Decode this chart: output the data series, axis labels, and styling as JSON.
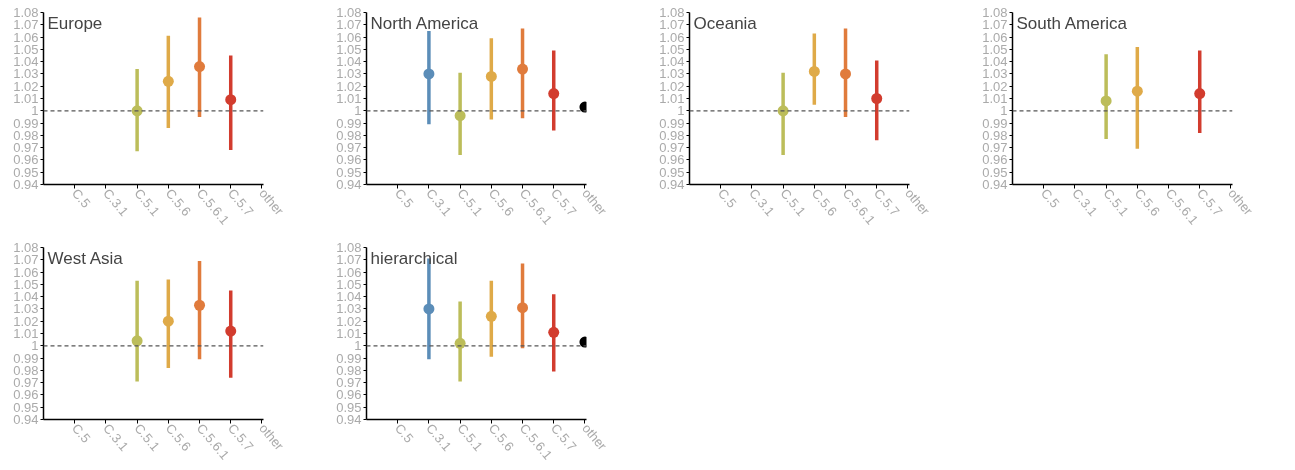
{
  "chart_data": [
    {
      "type": "scatter",
      "title": "Europe",
      "categories": [
        "C.5",
        "C.3.1",
        "C.5.1",
        "C.5.6",
        "C.5.6.1",
        "C.5.7",
        "other"
      ],
      "values": [
        null,
        null,
        1.0,
        1.024,
        1.036,
        1.009,
        null
      ],
      "errors": [
        null,
        null,
        [
          0.967,
          1.034
        ],
        [
          0.986,
          1.061
        ],
        [
          0.995,
          1.076
        ],
        [
          0.968,
          1.045
        ],
        null
      ],
      "colors": [
        "#5b8db8",
        "#5b8db8",
        "#bcbd5a",
        "#dfaa48",
        "#e07b3c",
        "#d23c2e",
        "#000000"
      ],
      "marker": "circle",
      "ylim": [
        0.94,
        1.08
      ],
      "yticks": [
        0.94,
        0.95,
        0.96,
        0.97,
        0.98,
        0.99,
        1,
        1.01,
        1.02,
        1.03,
        1.04,
        1.05,
        1.06,
        1.07,
        1.08
      ],
      "ref_lines": [
        {
          "axis": "y",
          "value": 1,
          "color": "#555555",
          "line_style": "dashed"
        }
      ],
      "grid": false
    },
    {
      "type": "scatter",
      "title": "North America",
      "categories": [
        "C.5",
        "C.3.1",
        "C.5.1",
        "C.5.6",
        "C.5.6.1",
        "C.5.7",
        "other"
      ],
      "values": [
        null,
        1.03,
        0.996,
        1.028,
        1.034,
        1.014,
        1.003
      ],
      "errors": [
        null,
        [
          0.989,
          1.065
        ],
        [
          0.964,
          1.031
        ],
        [
          0.993,
          1.059
        ],
        [
          0.994,
          1.067
        ],
        [
          0.984,
          1.049
        ],
        null
      ],
      "colors": [
        "#5b8db8",
        "#5b8db8",
        "#bcbd5a",
        "#dfaa48",
        "#e07b3c",
        "#d23c2e",
        "#000000"
      ],
      "marker": "circle",
      "ylim": [
        0.94,
        1.08
      ],
      "yticks": [
        0.94,
        0.95,
        0.96,
        0.97,
        0.98,
        0.99,
        1,
        1.01,
        1.02,
        1.03,
        1.04,
        1.05,
        1.06,
        1.07,
        1.08
      ],
      "ref_lines": [
        {
          "axis": "y",
          "value": 1,
          "color": "#555555",
          "line_style": "dashed"
        }
      ],
      "grid": false
    },
    {
      "type": "scatter",
      "title": "Oceania",
      "categories": [
        "C.5",
        "C.3.1",
        "C.5.1",
        "C.5.6",
        "C.5.6.1",
        "C.5.7",
        "other"
      ],
      "values": [
        null,
        null,
        1.0,
        1.032,
        1.03,
        1.01,
        null
      ],
      "errors": [
        null,
        null,
        [
          0.964,
          1.031
        ],
        [
          1.005,
          1.063
        ],
        [
          0.995,
          1.067
        ],
        [
          0.976,
          1.041
        ],
        null
      ],
      "colors": [
        "#5b8db8",
        "#5b8db8",
        "#bcbd5a",
        "#dfaa48",
        "#e07b3c",
        "#d23c2e",
        "#000000"
      ],
      "marker": "circle",
      "ylim": [
        0.94,
        1.08
      ],
      "yticks": [
        0.94,
        0.95,
        0.96,
        0.97,
        0.98,
        0.99,
        1,
        1.01,
        1.02,
        1.03,
        1.04,
        1.05,
        1.06,
        1.07,
        1.08
      ],
      "ref_lines": [
        {
          "axis": "y",
          "value": 1,
          "color": "#555555",
          "line_style": "dashed"
        }
      ],
      "grid": false
    },
    {
      "type": "scatter",
      "title": "South America",
      "categories": [
        "C.5",
        "C.3.1",
        "C.5.1",
        "C.5.6",
        "C.5.6.1",
        "C.5.7",
        "other"
      ],
      "values": [
        null,
        null,
        1.008,
        1.016,
        null,
        1.014,
        null
      ],
      "errors": [
        null,
        null,
        [
          0.977,
          1.046
        ],
        [
          0.969,
          1.052
        ],
        null,
        [
          0.982,
          1.049
        ],
        null
      ],
      "colors": [
        "#5b8db8",
        "#5b8db8",
        "#bcbd5a",
        "#dfaa48",
        "#e07b3c",
        "#d23c2e",
        "#000000"
      ],
      "marker": "circle",
      "ylim": [
        0.94,
        1.08
      ],
      "yticks": [
        0.94,
        0.95,
        0.96,
        0.97,
        0.98,
        0.99,
        1,
        1.01,
        1.02,
        1.03,
        1.04,
        1.05,
        1.06,
        1.07,
        1.08
      ],
      "ref_lines": [
        {
          "axis": "y",
          "value": 1,
          "color": "#555555",
          "line_style": "dashed"
        }
      ],
      "grid": false
    },
    {
      "type": "scatter",
      "title": "West Asia",
      "categories": [
        "C.5",
        "C.3.1",
        "C.5.1",
        "C.5.6",
        "C.5.6.1",
        "C.5.7",
        "other"
      ],
      "values": [
        null,
        null,
        1.004,
        1.02,
        1.033,
        1.012,
        null
      ],
      "errors": [
        null,
        null,
        [
          0.971,
          1.053
        ],
        [
          0.982,
          1.054
        ],
        [
          0.989,
          1.069
        ],
        [
          0.974,
          1.045
        ],
        null
      ],
      "colors": [
        "#5b8db8",
        "#5b8db8",
        "#bcbd5a",
        "#dfaa48",
        "#e07b3c",
        "#d23c2e",
        "#000000"
      ],
      "marker": "circle",
      "ylim": [
        0.94,
        1.08
      ],
      "yticks": [
        0.94,
        0.95,
        0.96,
        0.97,
        0.98,
        0.99,
        1,
        1.01,
        1.02,
        1.03,
        1.04,
        1.05,
        1.06,
        1.07,
        1.08
      ],
      "ref_lines": [
        {
          "axis": "y",
          "value": 1,
          "color": "#555555",
          "line_style": "dashed"
        }
      ],
      "grid": false
    },
    {
      "type": "scatter",
      "title": "hierarchical",
      "categories": [
        "C.5",
        "C.3.1",
        "C.5.1",
        "C.5.6",
        "C.5.6.1",
        "C.5.7",
        "other"
      ],
      "values": [
        null,
        1.03,
        1.002,
        1.024,
        1.031,
        1.011,
        1.003
      ],
      "errors": [
        null,
        [
          0.989,
          1.071
        ],
        [
          0.971,
          1.036
        ],
        [
          0.991,
          1.053
        ],
        [
          0.998,
          1.067
        ],
        [
          0.979,
          1.042
        ],
        null
      ],
      "colors": [
        "#5b8db8",
        "#5b8db8",
        "#bcbd5a",
        "#dfaa48",
        "#e07b3c",
        "#d23c2e",
        "#000000"
      ],
      "marker": "circle",
      "ylim": [
        0.94,
        1.08
      ],
      "yticks": [
        0.94,
        0.95,
        0.96,
        0.97,
        0.98,
        0.99,
        1,
        1.01,
        1.02,
        1.03,
        1.04,
        1.05,
        1.06,
        1.07,
        1.08
      ],
      "ref_lines": [
        {
          "axis": "y",
          "value": 1,
          "color": "#555555",
          "line_style": "dashed"
        }
      ],
      "grid": false
    }
  ]
}
